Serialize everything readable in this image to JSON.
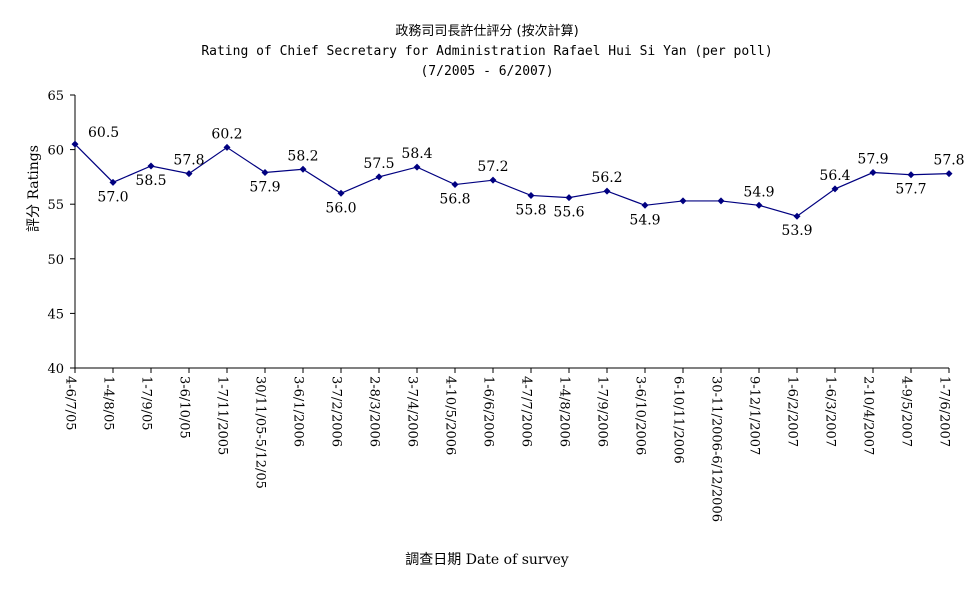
{
  "chart_data": {
    "type": "line",
    "title_cn": "政務司司長許仕評分 (按次計算)",
    "title": "Rating of Chief Secretary for Administration Rafael Hui Si Yan  (per poll)",
    "subtitle": "(7/2005 - 6/2007)",
    "xlabel": "調查日期 Date of survey",
    "ylabel": "評分 Ratings",
    "ylim": [
      40,
      65
    ],
    "yticks": [
      40,
      45,
      50,
      55,
      60,
      65
    ],
    "grid": false,
    "color": "#000080",
    "categories": [
      "4-6/7/05",
      "1-4/8/05",
      "1-7/9/05",
      "3-6/10/05",
      "1-7/11/2005",
      "30/11/05-5/12/05",
      "3-6/1/2006",
      "3-7/2/2006",
      "2-8/3/2006",
      "3-7/4/2006",
      "4-10/5/2006",
      "1-6/6/2006",
      "4-7/7/2006",
      "1-4/8/2006",
      "1-7/9/2006",
      "3-6/10/2006",
      "6-10/11/2006",
      "30-11/2006-6/12/2006",
      "9-12/1/2007",
      "1-6/2/2007",
      "1-6/3/2007",
      "2-10/4/2007",
      "4-9/5/2007",
      "1-7/6/2007"
    ],
    "values": [
      60.5,
      57.0,
      58.5,
      57.8,
      60.2,
      57.9,
      58.2,
      56.0,
      57.5,
      58.4,
      56.8,
      57.2,
      55.8,
      55.6,
      56.2,
      54.9,
      55.3,
      55.3,
      54.9,
      53.9,
      56.4,
      57.9,
      57.7,
      57.8
    ],
    "data_labels": [
      "60.5",
      "57.0",
      "58.5",
      "57.8",
      "60.2",
      "57.9",
      "58.2",
      "56.0",
      "57.5",
      "58.4",
      "56.8",
      "57.2",
      "55.8",
      "55.6",
      "56.2",
      "54.9",
      null,
      null,
      "54.9",
      "53.9",
      "56.4",
      "57.9",
      "57.7",
      "57.8"
    ],
    "label_pos": [
      "r",
      "b",
      "b",
      "t",
      "t",
      "b",
      "t",
      "b",
      "t",
      "t",
      "b",
      "t",
      "b",
      "b",
      "t",
      "b",
      null,
      null,
      "t",
      "b",
      "t",
      "t",
      "b",
      "t"
    ]
  }
}
